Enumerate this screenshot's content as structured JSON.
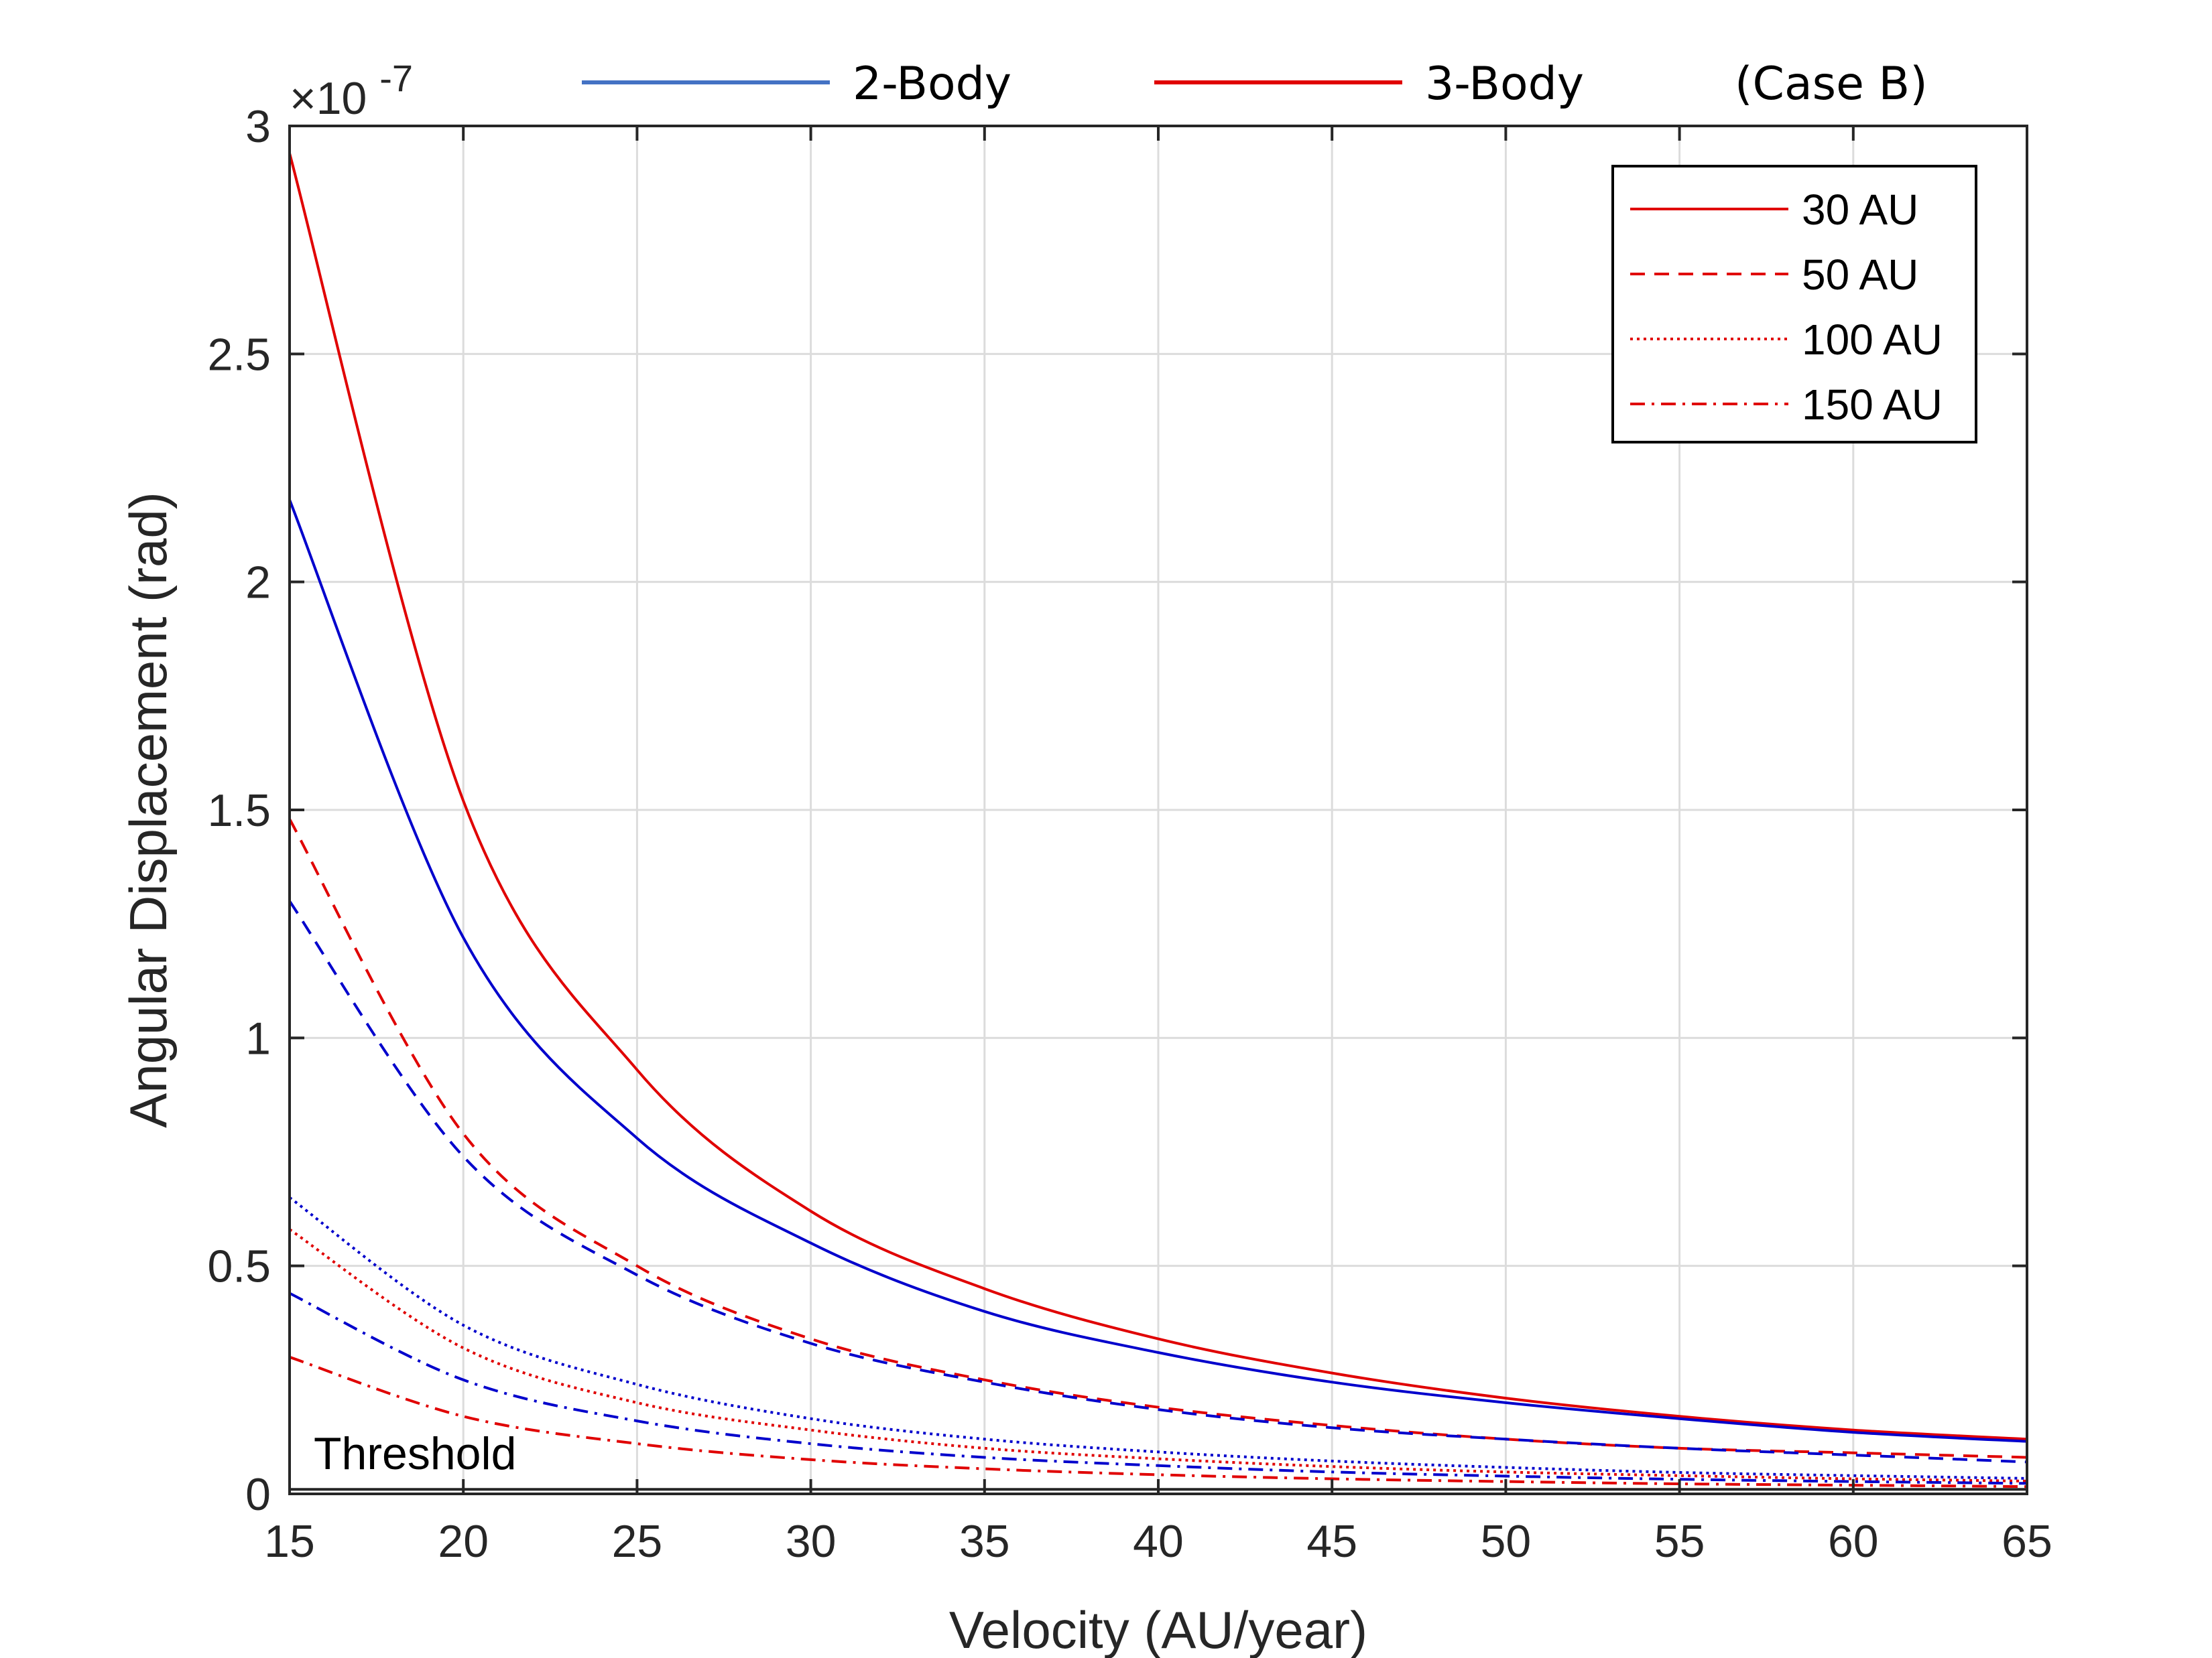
{
  "chart_data": {
    "type": "line",
    "xlabel": "Velocity (AU/year)",
    "ylabel": "Angular Displacement (rad)",
    "xlim": [
      15,
      65
    ],
    "ylim": [
      0,
      3e-07
    ],
    "y_exponent_label": "×10",
    "y_exponent_power": "-7",
    "x_ticks": [
      15,
      20,
      25,
      30,
      35,
      40,
      45,
      50,
      55,
      60,
      65
    ],
    "x_tick_labels": [
      "15",
      "20",
      "25",
      "30",
      "35",
      "40",
      "45",
      "50",
      "55",
      "60",
      "65"
    ],
    "y_ticks": [
      0,
      5e-08,
      1e-07,
      1.5e-07,
      2e-07,
      2.5e-07,
      3e-07
    ],
    "y_tick_labels": [
      "0",
      "0.5",
      "1",
      "1.5",
      "2",
      "2.5",
      "3"
    ],
    "grid": true,
    "top_legend": {
      "items": [
        {
          "label": "2-Body",
          "color": "#4472c4"
        },
        {
          "label": "3-Body",
          "color": "#e00000"
        }
      ],
      "note": "(Case B)"
    },
    "legend": {
      "position": "top-right",
      "items": [
        {
          "label": "30 AU",
          "style": "solid"
        },
        {
          "label": "50 AU",
          "style": "dashed"
        },
        {
          "label": "100 AU",
          "style": "dotted"
        },
        {
          "label": "150 AU",
          "style": "dashdot"
        }
      ]
    },
    "threshold": {
      "label": "Threshold",
      "value": 1e-09
    },
    "series": [
      {
        "body": "3-Body",
        "distance": "30 AU",
        "style": "solid",
        "color": "#e00000",
        "x": [
          15,
          20,
          25,
          30,
          35,
          40,
          45,
          50,
          55,
          60,
          65
        ],
        "values": [
          2.94e-07,
          1.52e-07,
          9.3e-08,
          6.2e-08,
          4.5e-08,
          3.4e-08,
          2.65e-08,
          2.1e-08,
          1.7e-08,
          1.4e-08,
          1.2e-08
        ]
      },
      {
        "body": "2-Body",
        "distance": "30 AU",
        "style": "solid",
        "color": "#0000cc",
        "x": [
          15,
          20,
          25,
          30,
          35,
          40,
          45,
          50,
          55,
          60,
          65
        ],
        "values": [
          2.18e-07,
          1.22e-07,
          7.8e-08,
          5.5e-08,
          4e-08,
          3.1e-08,
          2.45e-08,
          2e-08,
          1.65e-08,
          1.35e-08,
          1.15e-08
        ]
      },
      {
        "body": "3-Body",
        "distance": "50 AU",
        "style": "dashed",
        "color": "#e00000",
        "x": [
          15,
          20,
          25,
          30,
          35,
          40,
          45,
          50,
          55,
          60,
          65
        ],
        "values": [
          1.48e-07,
          7.9e-08,
          5e-08,
          3.4e-08,
          2.5e-08,
          1.9e-08,
          1.5e-08,
          1.2e-08,
          1e-08,
          9e-09,
          8e-09
        ]
      },
      {
        "body": "2-Body",
        "distance": "50 AU",
        "style": "dashed",
        "color": "#0000cc",
        "x": [
          15,
          20,
          25,
          30,
          35,
          40,
          45,
          50,
          55,
          60,
          65
        ],
        "values": [
          1.3e-07,
          7.4e-08,
          4.8e-08,
          3.3e-08,
          2.45e-08,
          1.85e-08,
          1.45e-08,
          1.2e-08,
          1e-08,
          8.5e-09,
          7e-09
        ]
      },
      {
        "body": "2-Body",
        "distance": "100 AU",
        "style": "dotted",
        "color": "#0000cc",
        "x": [
          15,
          20,
          25,
          30,
          35,
          40,
          45,
          50,
          55,
          60,
          65
        ],
        "values": [
          6.5e-08,
          3.7e-08,
          2.4e-08,
          1.65e-08,
          1.2e-08,
          9.2e-09,
          7.2e-09,
          5.8e-09,
          4.7e-09,
          4e-09,
          3.4e-09
        ]
      },
      {
        "body": "3-Body",
        "distance": "100 AU",
        "style": "dotted",
        "color": "#e00000",
        "x": [
          15,
          20,
          25,
          30,
          35,
          40,
          45,
          50,
          55,
          60,
          65
        ],
        "values": [
          5.8e-08,
          3.2e-08,
          2e-08,
          1.4e-08,
          1e-08,
          7.7e-09,
          6e-09,
          4.8e-09,
          4e-09,
          3.3e-09,
          2.8e-09
        ]
      },
      {
        "body": "2-Body",
        "distance": "150 AU",
        "style": "dashdot",
        "color": "#0000cc",
        "x": [
          15,
          20,
          25,
          30,
          35,
          40,
          45,
          50,
          55,
          60,
          65
        ],
        "values": [
          4.4e-08,
          2.5e-08,
          1.6e-08,
          1.1e-08,
          8e-09,
          6.2e-09,
          4.8e-09,
          3.9e-09,
          3.2e-09,
          2.7e-09,
          2.3e-09
        ]
      },
      {
        "body": "3-Body",
        "distance": "150 AU",
        "style": "dashdot",
        "color": "#e00000",
        "x": [
          15,
          20,
          25,
          30,
          35,
          40,
          45,
          50,
          55,
          60,
          65
        ],
        "values": [
          3e-08,
          1.7e-08,
          1.1e-08,
          7.5e-09,
          5.5e-09,
          4.2e-09,
          3.3e-09,
          2.7e-09,
          2.2e-09,
          1.9e-09,
          1.6e-09
        ]
      }
    ]
  }
}
